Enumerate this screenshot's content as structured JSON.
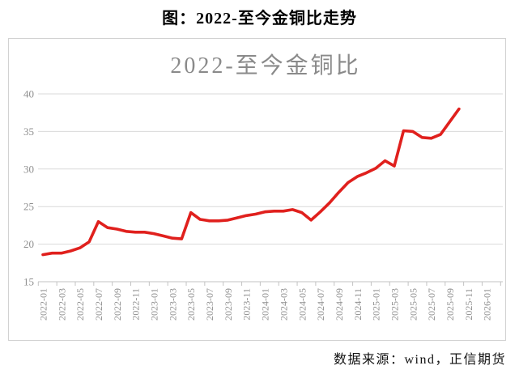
{
  "page": {
    "title": "图：2022-至今金铜比走势",
    "source_note": "数据来源：wind，正信期货"
  },
  "chart_data": {
    "type": "line",
    "title": "2022-至今金铜比",
    "title_color": "#8a8a8a",
    "grid": "horizontal",
    "legend": "none",
    "gridline_color": "#d9d9d9",
    "axis_color": "#c3c3c3",
    "axis_label_color": "#8f8f8f",
    "ylim": [
      15,
      40
    ],
    "yticks": [
      15,
      20,
      25,
      30,
      35,
      40
    ],
    "x_axis_start": "2022-01",
    "x_axis_end": "2026-01",
    "xtick_labels": [
      "2022-01",
      "2022-03",
      "2022-05",
      "2022-07",
      "2022-09",
      "2022-11",
      "2023-01",
      "2023-03",
      "2023-05",
      "2023-07",
      "2023-09",
      "2023-11",
      "2024-01",
      "2024-03",
      "2024-05",
      "2024-07",
      "2024-09",
      "2024-11",
      "2025-01",
      "2025-03",
      "2025-05",
      "2025-07",
      "2025-09",
      "2025-11",
      "2026-01"
    ],
    "x": [
      "2022-01",
      "2022-02",
      "2022-03",
      "2022-04",
      "2022-05",
      "2022-06",
      "2022-07",
      "2022-08",
      "2022-09",
      "2022-10",
      "2022-11",
      "2022-12",
      "2023-01",
      "2023-02",
      "2023-03",
      "2023-04",
      "2023-05",
      "2023-06",
      "2023-07",
      "2023-08",
      "2023-09",
      "2023-10",
      "2023-11",
      "2023-12",
      "2024-01",
      "2024-02",
      "2024-03",
      "2024-04",
      "2024-05",
      "2024-06",
      "2024-07",
      "2024-08",
      "2024-09",
      "2024-10",
      "2024-11",
      "2024-12",
      "2025-01",
      "2025-02",
      "2025-03",
      "2025-04",
      "2025-05",
      "2025-06",
      "2025-07",
      "2025-08",
      "2025-09",
      "2025-10"
    ],
    "series": [
      {
        "name": "金铜比",
        "color": "#e0201d",
        "values": [
          18.6,
          18.8,
          18.8,
          19.1,
          19.5,
          20.3,
          23.0,
          22.2,
          22.0,
          21.7,
          21.6,
          21.6,
          21.4,
          21.1,
          20.8,
          20.7,
          24.2,
          23.3,
          23.1,
          23.1,
          23.2,
          23.5,
          23.8,
          24.0,
          24.3,
          24.4,
          24.4,
          24.6,
          24.2,
          23.2,
          24.3,
          25.5,
          26.9,
          28.2,
          29.0,
          29.5,
          30.1,
          31.1,
          30.4,
          35.1,
          35.0,
          34.2,
          34.1,
          34.6,
          36.3,
          38.0
        ]
      }
    ]
  }
}
